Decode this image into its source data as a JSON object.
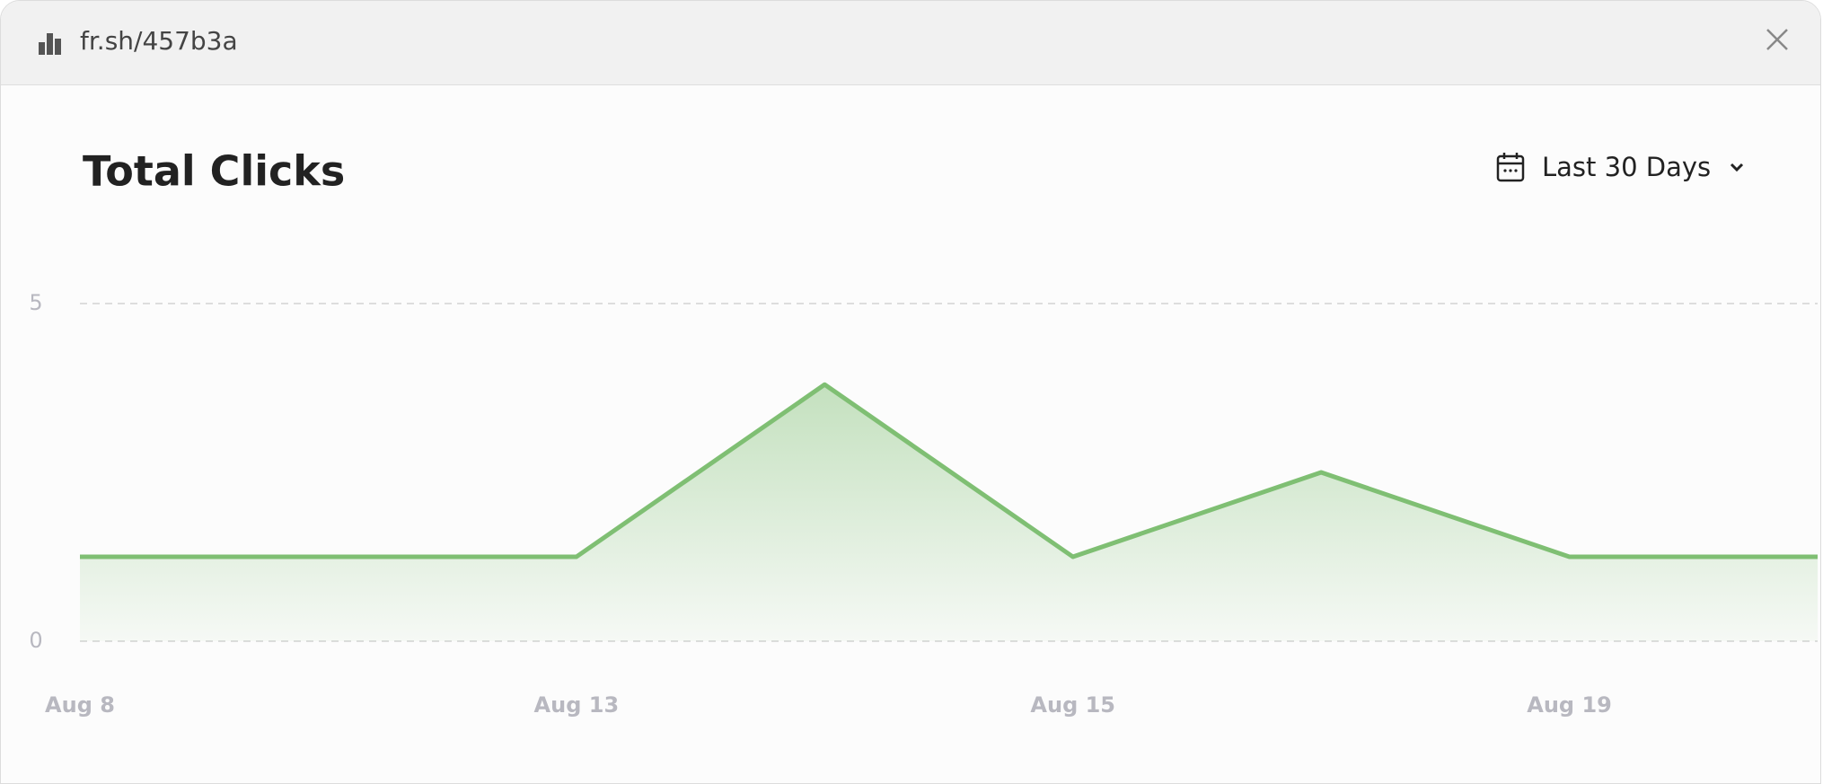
{
  "header": {
    "url": "fr.sh/457b3a"
  },
  "controls": {
    "date_range": "Last 30 Days"
  },
  "chart_data": {
    "type": "area",
    "title": "Total Clicks",
    "categories": [
      "Aug 8",
      null,
      "Aug 13",
      null,
      "Aug 15",
      null,
      "Aug 19",
      null
    ],
    "series": [
      {
        "name": "Clicks",
        "color": "#7fbf73",
        "values": [
          1.25,
          1.25,
          1.25,
          3.8,
          1.25,
          2.5,
          1.25,
          1.25
        ]
      }
    ],
    "ylim": [
      0,
      5
    ],
    "yticks": [
      0,
      5
    ],
    "grid": true
  }
}
